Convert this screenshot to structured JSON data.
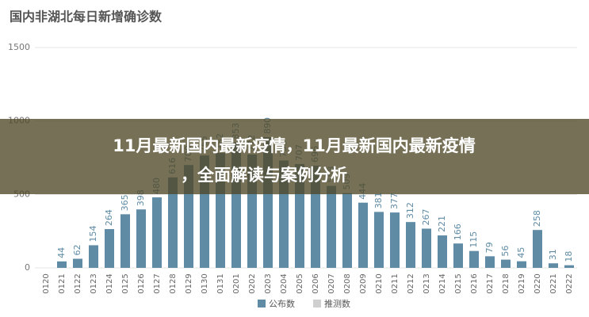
{
  "chart_data": {
    "type": "bar",
    "title": "国内非湖北每日新增确诊数",
    "categories": [
      "0120",
      "0121",
      "0122",
      "0123",
      "0124",
      "0125",
      "0126",
      "0127",
      "0128",
      "0129",
      "0130",
      "0131",
      "0201",
      "0202",
      "0203",
      "0204",
      "0205",
      "0206",
      "0207",
      "0208",
      "0209",
      "0210",
      "0211",
      "0212",
      "0213",
      "0214",
      "0215",
      "0216",
      "0217",
      "0218",
      "0219",
      "0220",
      "0221",
      "0222"
    ],
    "series": [
      {
        "name": "公布数",
        "color": "#5f8ba5",
        "values": [
          null,
          44,
          62,
          154,
          264,
          365,
          398,
          480,
          616,
          700,
          765,
          782,
          853,
          772,
          890,
          731,
          707,
          696,
          558,
          509,
          444,
          381,
          377,
          312,
          267,
          221,
          166,
          115,
          79,
          56,
          45,
          258,
          31,
          18
        ]
      },
      {
        "name": "推测数",
        "color": "#cfcfcf",
        "values": [
          null,
          null,
          null,
          null,
          null,
          null,
          null,
          null,
          null,
          null,
          null,
          null,
          null,
          null,
          null,
          null,
          null,
          null,
          null,
          null,
          null,
          null,
          null,
          null,
          null,
          null,
          null,
          null,
          null,
          null,
          null,
          null,
          null,
          null
        ]
      }
    ],
    "ylim": [
      0,
      1500
    ],
    "yticks": [
      0,
      500,
      1000,
      1500
    ],
    "grid": true
  },
  "overlay": {
    "lines": [
      "11月最新国内最新疫情，11月最新国内最新疫情",
      "，全面解读与案例分析"
    ]
  }
}
